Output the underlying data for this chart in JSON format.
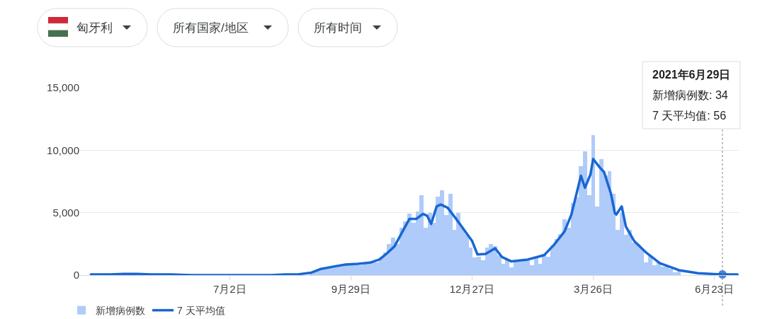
{
  "chart_data": {
    "type": "bar",
    "annotations": [
      "匈牙利",
      "所有国家/地区",
      "所有时间",
      "2021年6月29日",
      "新增病例数: 34",
      "7 天平均值: 56"
    ],
    "x": [
      "2020-08-31",
      "2020-09-03",
      "2020-09-06",
      "2020-09-09",
      "2020-09-12",
      "2020-09-15",
      "2020-09-18",
      "2020-09-21",
      "2020-09-24",
      "2020-09-27",
      "2020-09-30",
      "2020-10-03",
      "2020-10-06",
      "2020-10-09",
      "2020-10-12",
      "2020-10-15",
      "2020-10-18",
      "2020-10-21",
      "2020-10-24",
      "2020-10-27",
      "2020-10-30",
      "2020-11-02",
      "2020-11-05",
      "2020-11-08",
      "2020-11-11",
      "2020-11-14",
      "2020-11-17",
      "2020-11-20",
      "2020-11-23",
      "2020-11-26",
      "2020-11-29",
      "2020-12-02",
      "2020-12-05",
      "2020-12-08",
      "2020-12-11",
      "2020-12-14",
      "2020-12-17",
      "2020-12-20",
      "2020-12-23",
      "2020-12-26",
      "2020-12-29",
      "2021-01-01",
      "2021-01-04",
      "2021-01-07",
      "2021-01-10",
      "2021-01-13",
      "2021-01-16",
      "2021-01-19",
      "2021-01-22",
      "2021-01-25",
      "2021-01-28",
      "2021-01-31",
      "2021-02-03",
      "2021-02-06",
      "2021-02-09",
      "2021-02-12",
      "2021-02-15",
      "2021-02-18",
      "2021-02-21",
      "2021-02-24",
      "2021-02-27",
      "2021-03-02",
      "2021-03-05",
      "2021-03-08",
      "2021-03-11",
      "2021-03-14",
      "2021-03-17",
      "2021-03-20",
      "2021-03-23",
      "2021-03-26",
      "2021-03-29",
      "2021-04-01",
      "2021-04-04",
      "2021-04-07",
      "2021-04-10",
      "2021-04-13",
      "2021-04-16",
      "2021-04-19",
      "2021-04-22",
      "2021-04-25",
      "2021-04-28",
      "2021-05-01",
      "2021-05-04",
      "2021-05-07",
      "2021-05-10",
      "2021-05-13",
      "2021-05-16",
      "2021-05-19",
      "2021-05-22",
      "2021-05-25",
      "2021-05-28"
    ],
    "xlim": [
      "2020-03-14",
      "2021-07-11"
    ],
    "xticks": [
      {
        "value": "2020-07-02",
        "label": "7月2日"
      },
      {
        "value": "2020-09-29",
        "label": "9月29日"
      },
      {
        "value": "2020-12-27",
        "label": "12月27日"
      },
      {
        "value": "2021-03-26",
        "label": "3月26日"
      },
      {
        "value": "2021-06-23",
        "label": "6月23日"
      }
    ],
    "ylim": [
      0,
      15000
    ],
    "yticks": [
      0,
      {
        "value": 5000,
        "label": "5,000"
      },
      {
        "value": 10000,
        "label": "10,000"
      },
      {
        "value": 15000,
        "label": "15,000"
      }
    ],
    "series": [
      {
        "name": "新增病例数",
        "color": "#aecbfa",
        "values": [
          250,
          300,
          400,
          550,
          700,
          650,
          800,
          700,
          900,
          850,
          800,
          950,
          800,
          1000,
          950,
          1100,
          1000,
          1400,
          1800,
          2500,
          3000,
          2500,
          3800,
          4300,
          4900,
          4200,
          5100,
          6400,
          3800,
          5000,
          4200,
          6300,
          6800,
          4800,
          6500,
          3600,
          5000,
          3800,
          3300,
          2200,
          1400,
          1500,
          1200,
          2200,
          2500,
          2300,
          1600,
          900,
          1300,
          600,
          1200,
          1100,
          1300,
          1200,
          800,
          1400,
          900,
          1700,
          1500,
          2400,
          2900,
          3300,
          4500,
          3800,
          5800,
          6200,
          8700,
          9900,
          6400,
          11200,
          5500,
          9300,
          8000,
          8300,
          6500,
          3600,
          5000,
          3200,
          3600,
          2600,
          2500,
          2100,
          1000,
          1600,
          800,
          1000,
          700,
          700,
          500,
          200,
          400
        ]
      },
      {
        "name": "7 天平均值",
        "type": "line",
        "color": "#1967d2",
        "x": [
          "2020-03-22",
          "2020-04-05",
          "2020-04-15",
          "2020-04-25",
          "2020-05-05",
          "2020-05-20",
          "2020-06-05",
          "2020-06-25",
          "2020-07-15",
          "2020-08-01",
          "2020-08-12",
          "2020-08-20",
          "2020-08-31",
          "2020-09-07",
          "2020-09-17",
          "2020-09-25",
          "2020-10-04",
          "2020-10-13",
          "2020-10-20",
          "2020-10-25",
          "2020-10-31",
          "2020-11-07",
          "2020-11-11",
          "2020-11-16",
          "2020-11-21",
          "2020-11-24",
          "2020-11-27",
          "2020-12-01",
          "2020-12-04",
          "2020-12-09",
          "2020-12-15",
          "2020-12-22",
          "2020-12-27",
          "2020-12-31",
          "2021-01-06",
          "2021-01-13",
          "2021-01-18",
          "2021-01-25",
          "2021-02-06",
          "2021-02-18",
          "2021-02-25",
          "2021-03-05",
          "2021-03-10",
          "2021-03-17",
          "2021-03-20",
          "2021-03-24",
          "2021-03-26",
          "2021-03-31",
          "2021-04-03",
          "2021-04-08",
          "2021-04-11",
          "2021-04-12",
          "2021-04-16",
          "2021-04-19",
          "2021-04-25",
          "2021-05-04",
          "2021-05-14",
          "2021-05-28",
          "2021-06-11",
          "2021-06-29",
          "2021-07-10"
        ],
        "values": [
          50,
          50,
          100,
          100,
          50,
          50,
          0,
          0,
          0,
          0,
          50,
          50,
          200,
          500,
          700,
          850,
          900,
          1000,
          1250,
          1700,
          2300,
          3700,
          4500,
          4500,
          4900,
          4750,
          4100,
          5500,
          5650,
          5400,
          4550,
          3500,
          2750,
          1650,
          1700,
          2150,
          1450,
          1100,
          1250,
          1600,
          2400,
          3500,
          4850,
          7950,
          7000,
          8050,
          9300,
          8600,
          8250,
          6550,
          4950,
          4850,
          5500,
          3900,
          2750,
          1800,
          950,
          400,
          150,
          56,
          50
        ]
      }
    ],
    "ref_lines": [
      {
        "axis": "x",
        "value": "2021-06-29",
        "line_style": "dotted",
        "color": "#80868b"
      }
    ],
    "grid": "y",
    "legend": "bottom left"
  }
}
